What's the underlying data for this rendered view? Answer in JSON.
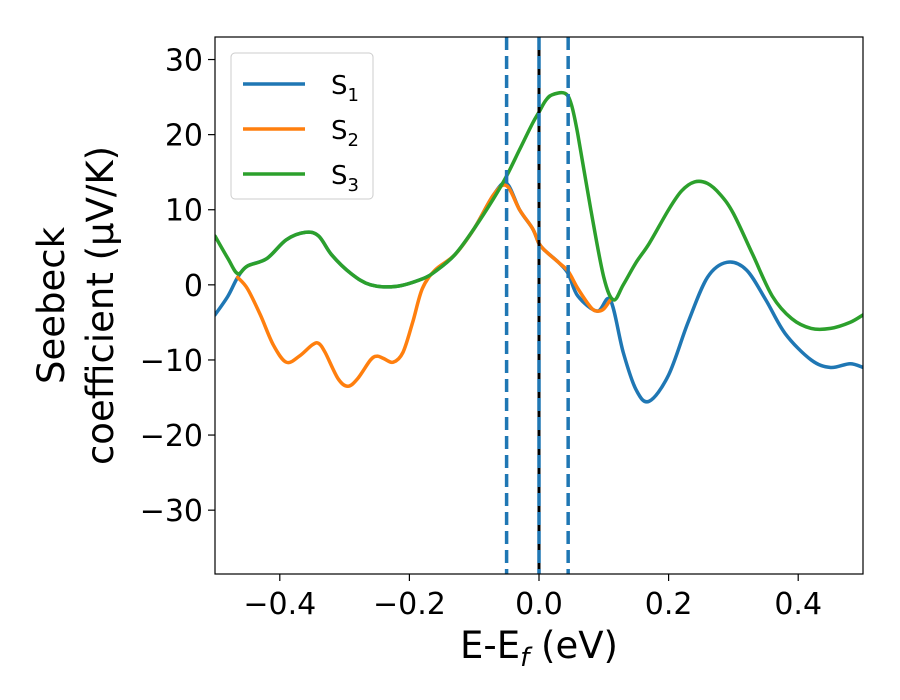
{
  "chart_data": {
    "type": "line",
    "xlabel": "E-E",
    "xlabel_sub": "f",
    "xlabel_unit": " (eV)",
    "ylabel_line1": "Seebeck",
    "ylabel_line2": "coefficient  (μV/K)",
    "xlim": [
      -0.5,
      0.5
    ],
    "ylim": [
      -38.5,
      33
    ],
    "x_ticks": [
      -0.4,
      -0.2,
      0.0,
      0.2,
      0.4
    ],
    "x_tick_labels": [
      "−0.4",
      "−0.2",
      "0.0",
      "0.2",
      "0.4"
    ],
    "y_ticks": [
      -30,
      -20,
      -10,
      0,
      10,
      20,
      30
    ],
    "y_tick_labels": [
      "−30",
      "−20",
      "−10",
      "0",
      "10",
      "20",
      "30"
    ],
    "grid": false,
    "legend_position": "top-left",
    "vlines": [
      {
        "x": -0.05,
        "style": "dashed",
        "color": "#1f77b4"
      },
      {
        "x": 0.0,
        "style": "solid",
        "color": "#000000"
      },
      {
        "x": 0.0,
        "style": "dashed",
        "color": "#1f77b4"
      },
      {
        "x": 0.045,
        "style": "dashed",
        "color": "#1f77b4"
      }
    ],
    "series": [
      {
        "name": "S",
        "name_sub": "1",
        "color": "#1f77b4",
        "x": [
          -0.5,
          -0.48,
          -0.465,
          -0.45,
          -0.42,
          -0.39,
          -0.36,
          -0.34,
          -0.32,
          -0.29,
          -0.26,
          -0.22,
          -0.18,
          -0.16,
          -0.13,
          -0.1,
          -0.07,
          -0.05,
          -0.03,
          -0.01,
          0.0,
          0.01,
          0.03,
          0.045,
          0.06,
          0.09,
          0.11,
          0.13,
          0.15,
          0.17,
          0.2,
          0.23,
          0.26,
          0.29,
          0.32,
          0.35,
          0.38,
          0.42,
          0.45,
          0.48,
          0.5
        ],
        "y": [
          -4,
          -1.5,
          1,
          2.5,
          3.5,
          6,
          7,
          6.5,
          4,
          1.5,
          0,
          -0.2,
          0.8,
          1.8,
          4,
          7.5,
          12,
          13.5,
          10,
          7.5,
          5.5,
          4.5,
          3,
          1.5,
          -1.5,
          -3.5,
          -2,
          -9,
          -14,
          -15.5,
          -12,
          -5,
          1,
          3,
          2,
          -2,
          -6.5,
          -10,
          -11,
          -10.5,
          -11
        ]
      },
      {
        "name": "S",
        "name_sub": "2",
        "color": "#ff7f0e",
        "x": [
          -0.465,
          -0.45,
          -0.43,
          -0.41,
          -0.39,
          -0.37,
          -0.35,
          -0.34,
          -0.33,
          -0.31,
          -0.295,
          -0.28,
          -0.26,
          -0.25,
          -0.24,
          -0.225,
          -0.21,
          -0.195,
          -0.18,
          -0.16,
          -0.13,
          -0.1,
          -0.07,
          -0.05,
          -0.03,
          -0.01,
          0.0,
          0.01,
          0.03,
          0.045,
          0.06,
          0.08,
          0.09,
          0.1,
          0.11
        ],
        "y": [
          1,
          -0.5,
          -4,
          -8,
          -10.3,
          -9.5,
          -8,
          -7.8,
          -9,
          -12.5,
          -13.5,
          -12.5,
          -10,
          -9.5,
          -9.8,
          -10.3,
          -9,
          -5,
          -0.5,
          2,
          4,
          7.5,
          12,
          13.2,
          10,
          7.5,
          5.5,
          4.5,
          3,
          1.8,
          -0.5,
          -3,
          -3.5,
          -3.2,
          -2
        ]
      },
      {
        "name": "S",
        "name_sub": "3",
        "color": "#2ca02c",
        "x": [
          -0.5,
          -0.48,
          -0.465,
          -0.45,
          -0.42,
          -0.39,
          -0.36,
          -0.34,
          -0.32,
          -0.29,
          -0.26,
          -0.22,
          -0.18,
          -0.16,
          -0.13,
          -0.1,
          -0.07,
          -0.05,
          -0.03,
          -0.01,
          0.0,
          0.01,
          0.02,
          0.04,
          0.05,
          0.06,
          0.08,
          0.1,
          0.115,
          0.13,
          0.15,
          0.17,
          0.2,
          0.22,
          0.24,
          0.26,
          0.28,
          0.3,
          0.33,
          0.36,
          0.39,
          0.42,
          0.45,
          0.48,
          0.5
        ],
        "y": [
          6.5,
          3.5,
          1.5,
          2.5,
          3.5,
          6,
          7,
          6.5,
          4,
          1.5,
          0,
          -0.2,
          0.8,
          1.8,
          4,
          7.5,
          11.5,
          14.5,
          18,
          21.5,
          23,
          24.5,
          25.3,
          25.5,
          24,
          20,
          10,
          1,
          -2,
          0,
          3,
          5.5,
          10,
          12.5,
          13.7,
          13.5,
          12,
          9.5,
          4,
          -1.5,
          -4.5,
          -5.8,
          -5.8,
          -5,
          -4
        ]
      }
    ]
  }
}
